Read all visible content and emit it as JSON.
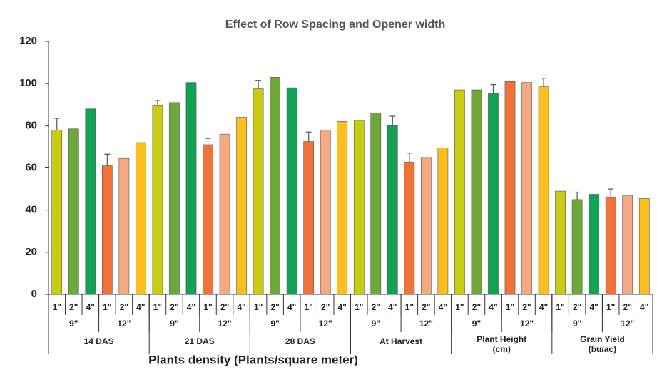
{
  "chart_data": {
    "type": "bar",
    "title": "Effect of Row Spacing and Opener width",
    "x_label": "Plants density (Plants/square meter)",
    "ylim": [
      0,
      120
    ],
    "yticks": [
      0,
      20,
      40,
      60,
      80,
      100,
      120
    ],
    "grid": false,
    "subgroup_colors": [
      [
        "#c9cc12",
        "#6fa83a",
        "#13a154"
      ],
      [
        "#f0743a",
        "#f5a982",
        "#fcbf1e"
      ]
    ],
    "groups": [
      {
        "label": [
          "14 DAS"
        ],
        "subgroups": [
          {
            "label": "9\"",
            "bars": [
              "1\"",
              "2\"",
              "4\""
            ],
            "values": [
              78,
              78.5,
              88
            ],
            "errors": [
              5.5,
              null,
              null
            ]
          },
          {
            "label": "12\"",
            "bars": [
              "1\"",
              "2\"",
              "4\""
            ],
            "values": [
              61,
              64.5,
              72
            ],
            "errors": [
              5.5,
              null,
              null
            ]
          }
        ]
      },
      {
        "label": [
          "21 DAS"
        ],
        "subgroups": [
          {
            "label": "9\"",
            "bars": [
              "1\"",
              "2\"",
              "4\""
            ],
            "values": [
              89.5,
              91,
              100.5
            ],
            "errors": [
              2.5,
              null,
              null
            ]
          },
          {
            "label": "12\"",
            "bars": [
              "1\"",
              "2\"",
              "4\""
            ],
            "values": [
              71,
              76,
              84
            ],
            "errors": [
              3,
              null,
              null
            ]
          }
        ]
      },
      {
        "label": [
          "28 DAS"
        ],
        "subgroups": [
          {
            "label": "9\"",
            "bars": [
              "1\"",
              "2\"",
              "4\""
            ],
            "values": [
              97.5,
              103,
              98
            ],
            "errors": [
              4,
              null,
              null
            ]
          },
          {
            "label": "12\"",
            "bars": [
              "1\"",
              "2\"",
              "4\""
            ],
            "values": [
              72.5,
              78,
              82
            ],
            "errors": [
              4.5,
              null,
              null
            ]
          }
        ]
      },
      {
        "label": [
          "At Harvest"
        ],
        "subgroups": [
          {
            "label": "9\"",
            "bars": [
              "1\"",
              "2\"",
              "4\""
            ],
            "values": [
              82.5,
              86,
              80
            ],
            "errors": [
              null,
              null,
              4.5
            ]
          },
          {
            "label": "12\"",
            "bars": [
              "1\"",
              "2\"",
              "4\""
            ],
            "values": [
              62.5,
              65,
              69.5
            ],
            "errors": [
              4.5,
              null,
              null
            ]
          }
        ]
      },
      {
        "label": [
          "Plant Height",
          "(cm)"
        ],
        "subgroups": [
          {
            "label": "9\"",
            "bars": [
              "1\"",
              "2\"",
              "4\""
            ],
            "values": [
              97,
              97,
              95.5
            ],
            "errors": [
              null,
              null,
              4
            ]
          },
          {
            "label": "12\"",
            "bars": [
              "1\"",
              "2\"",
              "4\""
            ],
            "values": [
              101,
              100.5,
              98.5
            ],
            "errors": [
              null,
              null,
              4
            ]
          }
        ]
      },
      {
        "label": [
          "Grain Yield",
          "(bu/ac)"
        ],
        "subgroups": [
          {
            "label": "9\"",
            "bars": [
              "1\"",
              "2\"",
              "4\""
            ],
            "values": [
              49,
              45,
              47.5
            ],
            "errors": [
              null,
              3.5,
              null
            ]
          },
          {
            "label": "12\"",
            "bars": [
              "1\"",
              "2\"",
              "4\""
            ],
            "values": [
              46,
              47,
              45.5
            ],
            "errors": [
              4,
              null,
              null
            ]
          }
        ]
      }
    ]
  }
}
